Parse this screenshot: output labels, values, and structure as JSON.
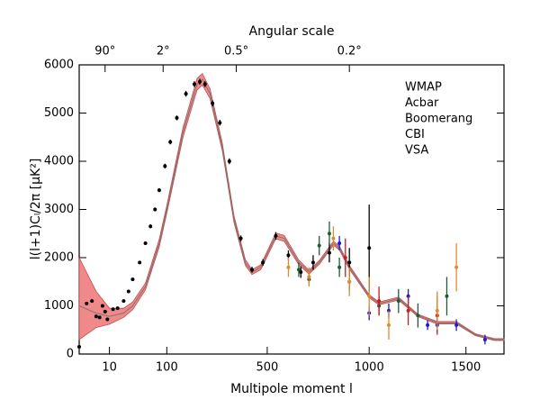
{
  "chart_data": {
    "type": "scatter",
    "top_axis_title": "Angular scale",
    "xlabel": "Multipole moment l",
    "ylabel": "l(l+1)Cₗ/2π [μK²]",
    "xlim": [
      2,
      1700
    ],
    "ylim": [
      0,
      6000
    ],
    "xticks": [
      10,
      100,
      500,
      1000,
      1500
    ],
    "yticks": [
      0,
      1000,
      2000,
      3000,
      4000,
      5000,
      6000
    ],
    "x2ticks": [
      {
        "value": 8,
        "label": "90°"
      },
      {
        "value": 90,
        "label": "2°"
      },
      {
        "value": 360,
        "label": "0.5°"
      },
      {
        "value": 900,
        "label": "0.2°"
      }
    ],
    "legend": "top-right",
    "model": {
      "color": "#777777",
      "band_color": "#f08a8a",
      "band_edge": "#c84a4a",
      "x": [
        2,
        5,
        10,
        20,
        30,
        50,
        80,
        100,
        150,
        200,
        220,
        250,
        300,
        350,
        400,
        430,
        470,
        540,
        580,
        650,
        700,
        750,
        820,
        850,
        900,
        1000,
        1050,
        1100,
        1150,
        1250,
        1350,
        1450,
        1550,
        1650,
        1700
      ],
      "values": [
        1000,
        850,
        780,
        850,
        1000,
        1400,
        2300,
        3000,
        4600,
        5600,
        5700,
        5400,
        4300,
        2800,
        1900,
        1700,
        1800,
        2450,
        2400,
        1900,
        1700,
        1900,
        2300,
        2200,
        1800,
        1200,
        1050,
        1100,
        1150,
        800,
        650,
        650,
        400,
        300,
        300
      ],
      "upper": [
        2000,
        1300,
        950,
        950,
        1080,
        1470,
        2380,
        3080,
        4700,
        5720,
        5820,
        5500,
        4380,
        2870,
        1960,
        1750,
        1850,
        2510,
        2460,
        1950,
        1740,
        1940,
        2340,
        2240,
        1840,
        1230,
        1080,
        1130,
        1180,
        825,
        675,
        675,
        420,
        320,
        320
      ],
      "lower": [
        300,
        550,
        620,
        760,
        920,
        1330,
        2220,
        2920,
        4500,
        5480,
        5580,
        5300,
        4220,
        2730,
        1840,
        1650,
        1750,
        2390,
        2340,
        1850,
        1660,
        1860,
        2260,
        2160,
        1760,
        1170,
        1020,
        1070,
        1120,
        775,
        625,
        625,
        380,
        280,
        280
      ]
    },
    "series": [
      {
        "name": "WMAP",
        "color": "#000000",
        "x": [
          2,
          3,
          4,
          5,
          6,
          7,
          8,
          9,
          12,
          15,
          20,
          25,
          30,
          40,
          50,
          60,
          70,
          80,
          95,
          110,
          130,
          160,
          190,
          210,
          230,
          260,
          290,
          330,
          380,
          430,
          480,
          540,
          600,
          660,
          720,
          800,
          900,
          1000
        ],
        "values": [
          150,
          1050,
          1100,
          780,
          760,
          1000,
          880,
          720,
          930,
          950,
          1100,
          1300,
          1550,
          1900,
          2300,
          2650,
          3000,
          3400,
          3900,
          4400,
          4900,
          5400,
          5600,
          5650,
          5600,
          5200,
          4800,
          4000,
          2400,
          1750,
          1900,
          2450,
          2050,
          1700,
          1900,
          2100,
          1900,
          2200
        ],
        "errors": [
          30,
          30,
          30,
          30,
          30,
          30,
          30,
          30,
          30,
          30,
          30,
          30,
          30,
          30,
          30,
          40,
          40,
          40,
          50,
          50,
          50,
          60,
          60,
          60,
          60,
          60,
          60,
          60,
          60,
          60,
          70,
          80,
          100,
          120,
          150,
          200,
          300,
          900
        ]
      },
      {
        "name": "Acbar",
        "color": "#1a1ad0",
        "x": [
          850,
          1000,
          1100,
          1200,
          1300,
          1350,
          1450,
          1600
        ],
        "values": [
          2300,
          850,
          900,
          1200,
          600,
          600,
          600,
          300
        ],
        "errors": [
          150,
          150,
          150,
          150,
          100,
          150,
          120,
          100
        ]
      },
      {
        "name": "Boomerang",
        "color": "#1e5c38",
        "x": [
          650,
          700,
          750,
          800,
          850,
          900,
          1050,
          1150,
          1250,
          1400
        ],
        "values": [
          1750,
          1550,
          2250,
          2500,
          1800,
          1500,
          1000,
          1100,
          800,
          1200
        ],
        "errors": [
          150,
          120,
          200,
          250,
          200,
          180,
          200,
          250,
          250,
          400
        ]
      },
      {
        "name": "CBI",
        "color": "#c81e1e",
        "x": [
          880,
          1050,
          1200,
          1350
        ],
        "values": [
          2000,
          1100,
          900,
          800
        ],
        "errors": [
          400,
          300,
          300,
          400
        ]
      },
      {
        "name": "VSA",
        "color": "#e08a30",
        "x": [
          600,
          700,
          820,
          900,
          1000,
          1100,
          1350,
          1450
        ],
        "values": [
          1800,
          1600,
          2400,
          1500,
          1200,
          600,
          900,
          1800
        ],
        "errors": [
          200,
          200,
          250,
          300,
          400,
          300,
          400,
          500
        ]
      }
    ]
  }
}
